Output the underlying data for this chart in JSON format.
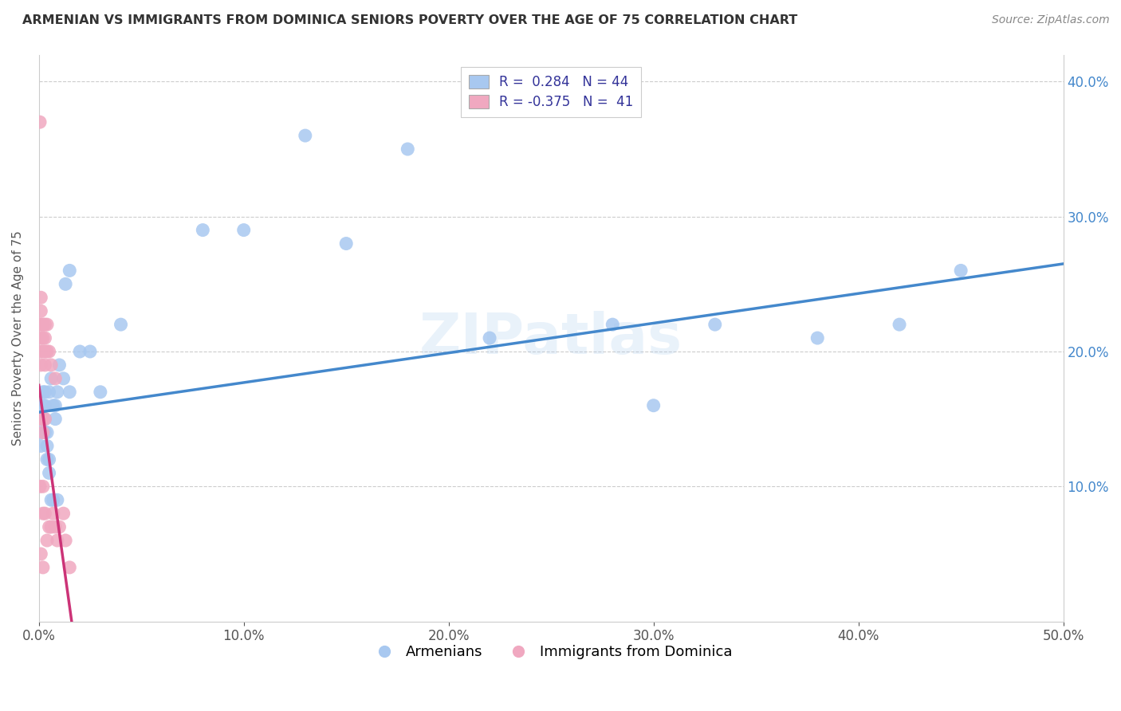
{
  "title": "ARMENIAN VS IMMIGRANTS FROM DOMINICA SENIORS POVERTY OVER THE AGE OF 75 CORRELATION CHART",
  "source": "Source: ZipAtlas.com",
  "ylabel": "Seniors Poverty Over the Age of 75",
  "xlim": [
    0.0,
    0.5
  ],
  "ylim": [
    0.0,
    0.42
  ],
  "xticks": [
    0.0,
    0.1,
    0.2,
    0.3,
    0.4,
    0.5
  ],
  "xticklabels": [
    "0.0%",
    "10.0%",
    "20.0%",
    "30.0%",
    "40.0%",
    "50.0%"
  ],
  "ytick_positions": [
    0.1,
    0.2,
    0.3,
    0.4
  ],
  "yticklabels": [
    "10.0%",
    "20.0%",
    "30.0%",
    "40.0%"
  ],
  "armenian_color": "#a8c8f0",
  "dominica_color": "#f0a8c0",
  "trendline_armenian_color": "#4488cc",
  "trendline_dominica_color": "#cc3377",
  "legend_R_armenian": "R =  0.284   N = 44",
  "legend_R_dominica": "R = -0.375   N =  41",
  "armenian_x": [
    0.001,
    0.001,
    0.002,
    0.002,
    0.002,
    0.003,
    0.003,
    0.003,
    0.003,
    0.004,
    0.004,
    0.004,
    0.005,
    0.005,
    0.005,
    0.006,
    0.006,
    0.007,
    0.007,
    0.008,
    0.008,
    0.009,
    0.009,
    0.01,
    0.012,
    0.013,
    0.015,
    0.015,
    0.02,
    0.025,
    0.03,
    0.04,
    0.08,
    0.1,
    0.13,
    0.15,
    0.18,
    0.22,
    0.28,
    0.3,
    0.33,
    0.38,
    0.42,
    0.45
  ],
  "armenian_y": [
    0.13,
    0.14,
    0.15,
    0.16,
    0.17,
    0.14,
    0.15,
    0.16,
    0.17,
    0.12,
    0.13,
    0.14,
    0.11,
    0.12,
    0.17,
    0.09,
    0.18,
    0.16,
    0.09,
    0.15,
    0.16,
    0.09,
    0.17,
    0.19,
    0.18,
    0.25,
    0.17,
    0.26,
    0.2,
    0.2,
    0.17,
    0.22,
    0.29,
    0.29,
    0.36,
    0.28,
    0.35,
    0.21,
    0.22,
    0.16,
    0.22,
    0.21,
    0.22,
    0.26
  ],
  "dominica_x": [
    0.0005,
    0.0005,
    0.0005,
    0.001,
    0.001,
    0.001,
    0.001,
    0.001,
    0.001,
    0.001,
    0.001,
    0.002,
    0.002,
    0.002,
    0.002,
    0.002,
    0.002,
    0.002,
    0.002,
    0.002,
    0.003,
    0.003,
    0.003,
    0.003,
    0.003,
    0.003,
    0.004,
    0.004,
    0.004,
    0.005,
    0.005,
    0.006,
    0.006,
    0.007,
    0.008,
    0.008,
    0.009,
    0.01,
    0.012,
    0.013,
    0.015
  ],
  "dominica_y": [
    0.37,
    0.22,
    0.1,
    0.24,
    0.23,
    0.22,
    0.21,
    0.2,
    0.19,
    0.15,
    0.05,
    0.22,
    0.22,
    0.21,
    0.2,
    0.15,
    0.14,
    0.1,
    0.08,
    0.04,
    0.22,
    0.21,
    0.2,
    0.19,
    0.15,
    0.08,
    0.22,
    0.2,
    0.06,
    0.2,
    0.07,
    0.19,
    0.07,
    0.08,
    0.18,
    0.07,
    0.06,
    0.07,
    0.08,
    0.06,
    0.04
  ],
  "trendline_arm_x0": 0.0,
  "trendline_arm_x1": 0.5,
  "trendline_arm_y0": 0.155,
  "trendline_arm_y1": 0.265,
  "trendline_dom_x0": 0.0,
  "trendline_dom_x1": 0.016,
  "trendline_dom_y0": 0.175,
  "trendline_dom_y1": 0.0,
  "watermark": "ZIPatlas",
  "background_color": "#ffffff",
  "grid_color": "#cccccc"
}
